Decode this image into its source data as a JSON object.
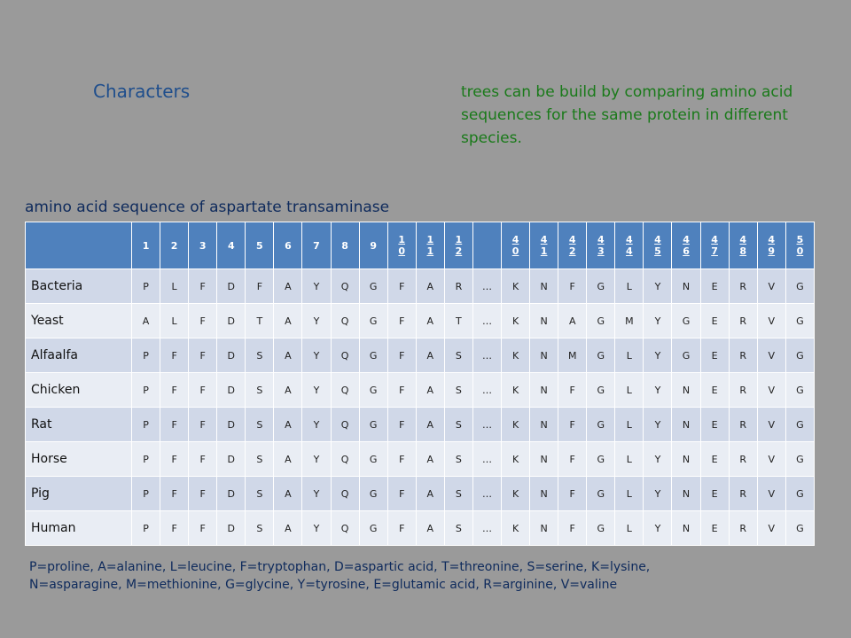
{
  "heading": "Characters",
  "note": "trees can be build by comparing amino acid sequences for the same protein in  different species.",
  "caption": "amino acid sequence of aspartate transaminase",
  "columns": [
    [
      "1"
    ],
    [
      "2"
    ],
    [
      "3"
    ],
    [
      "4"
    ],
    [
      "5"
    ],
    [
      "6"
    ],
    [
      "7"
    ],
    [
      "8"
    ],
    [
      "9"
    ],
    [
      "1",
      "0"
    ],
    [
      "1",
      "1"
    ],
    [
      "1",
      "2"
    ],
    [
      ""
    ],
    [
      "4",
      "0"
    ],
    [
      "4",
      "1"
    ],
    [
      "4",
      "2"
    ],
    [
      "4",
      "3"
    ],
    [
      "4",
      "4"
    ],
    [
      "4",
      "5"
    ],
    [
      "4",
      "6"
    ],
    [
      "4",
      "7"
    ],
    [
      "4",
      "8"
    ],
    [
      "4",
      "9"
    ],
    [
      "5",
      "0"
    ]
  ],
  "rows": [
    {
      "species": "Bacteria",
      "seq": [
        "P",
        "L",
        "F",
        "D",
        "F",
        "A",
        "Y",
        "Q",
        "G",
        "F",
        "A",
        "R",
        "…",
        "K",
        "N",
        "F",
        "G",
        "L",
        "Y",
        "N",
        "E",
        "R",
        "V",
        "G"
      ]
    },
    {
      "species": "Yeast",
      "seq": [
        "A",
        "L",
        "F",
        "D",
        "T",
        "A",
        "Y",
        "Q",
        "G",
        "F",
        "A",
        "T",
        "…",
        "K",
        "N",
        "A",
        "G",
        "M",
        "Y",
        "G",
        "E",
        "R",
        "V",
        "G"
      ]
    },
    {
      "species": "Alfaalfa",
      "seq": [
        "P",
        "F",
        "F",
        "D",
        "S",
        "A",
        "Y",
        "Q",
        "G",
        "F",
        "A",
        "S",
        "…",
        "K",
        "N",
        "M",
        "G",
        "L",
        "Y",
        "G",
        "E",
        "R",
        "V",
        "G"
      ]
    },
    {
      "species": "Chicken",
      "seq": [
        "P",
        "F",
        "F",
        "D",
        "S",
        "A",
        "Y",
        "Q",
        "G",
        "F",
        "A",
        "S",
        "…",
        "K",
        "N",
        "F",
        "G",
        "L",
        "Y",
        "N",
        "E",
        "R",
        "V",
        "G"
      ]
    },
    {
      "species": "Rat",
      "seq": [
        "P",
        "F",
        "F",
        "D",
        "S",
        "A",
        "Y",
        "Q",
        "G",
        "F",
        "A",
        "S",
        "…",
        "K",
        "N",
        "F",
        "G",
        "L",
        "Y",
        "N",
        "E",
        "R",
        "V",
        "G"
      ]
    },
    {
      "species": "Horse",
      "seq": [
        "P",
        "F",
        "F",
        "D",
        "S",
        "A",
        "Y",
        "Q",
        "G",
        "F",
        "A",
        "S",
        "…",
        "K",
        "N",
        "F",
        "G",
        "L",
        "Y",
        "N",
        "E",
        "R",
        "V",
        "G"
      ]
    },
    {
      "species": "Pig",
      "seq": [
        "P",
        "F",
        "F",
        "D",
        "S",
        "A",
        "Y",
        "Q",
        "G",
        "F",
        "A",
        "S",
        "…",
        "K",
        "N",
        "F",
        "G",
        "L",
        "Y",
        "N",
        "E",
        "R",
        "V",
        "G"
      ]
    },
    {
      "species": "Human",
      "seq": [
        "P",
        "F",
        "F",
        "D",
        "S",
        "A",
        "Y",
        "Q",
        "G",
        "F",
        "A",
        "S",
        "…",
        "K",
        "N",
        "F",
        "G",
        "L",
        "Y",
        "N",
        "E",
        "R",
        "V",
        "G"
      ]
    }
  ],
  "legend": [
    "P=proline, A=alanine, L=leucine, F=tryptophan, D=aspartic acid, T=threonine, S=serine, K=lysine,",
    "N=asparagine, M=methionine, G=glycine, Y=tyrosine, E=glutamic acid, R=arginine, V=valine"
  ]
}
